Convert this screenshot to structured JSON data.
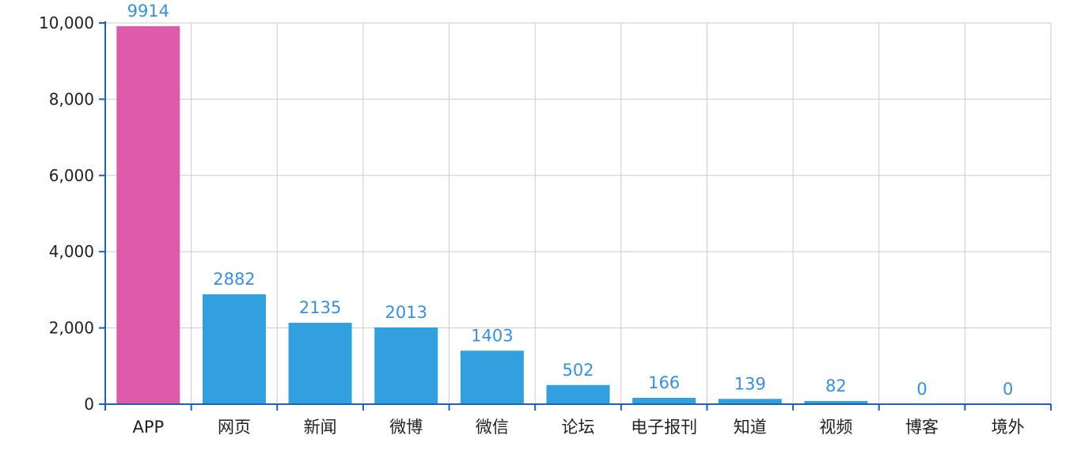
{
  "chart_data": {
    "type": "bar",
    "categories": [
      "APP",
      "网页",
      "新闻",
      "微博",
      "微信",
      "论坛",
      "电子报刊",
      "知道",
      "视频",
      "博客",
      "境外"
    ],
    "values": [
      9914,
      2882,
      2135,
      2013,
      1403,
      502,
      166,
      139,
      82,
      0,
      0
    ],
    "data_labels": [
      "9914",
      "2882",
      "2135",
      "2013",
      "1403",
      "502",
      "166",
      "139",
      "82",
      "0",
      "0"
    ],
    "title": "",
    "xlabel": "",
    "ylabel": "",
    "ylim": [
      0,
      10000
    ],
    "yticks": [
      0,
      2000,
      4000,
      6000,
      8000,
      10000
    ],
    "ytick_labels": [
      "0",
      "2,000",
      "4,000",
      "6,000",
      "8,000",
      "10,000"
    ],
    "grid": true,
    "legend": "none",
    "colors": {
      "highlight_bar": "#e05aaa",
      "bar": "#32a0dc",
      "data_label": "#3a8fd8",
      "grid": "#c8cbd6",
      "axis": "#1f5fb5"
    },
    "highlight_index": 0
  }
}
